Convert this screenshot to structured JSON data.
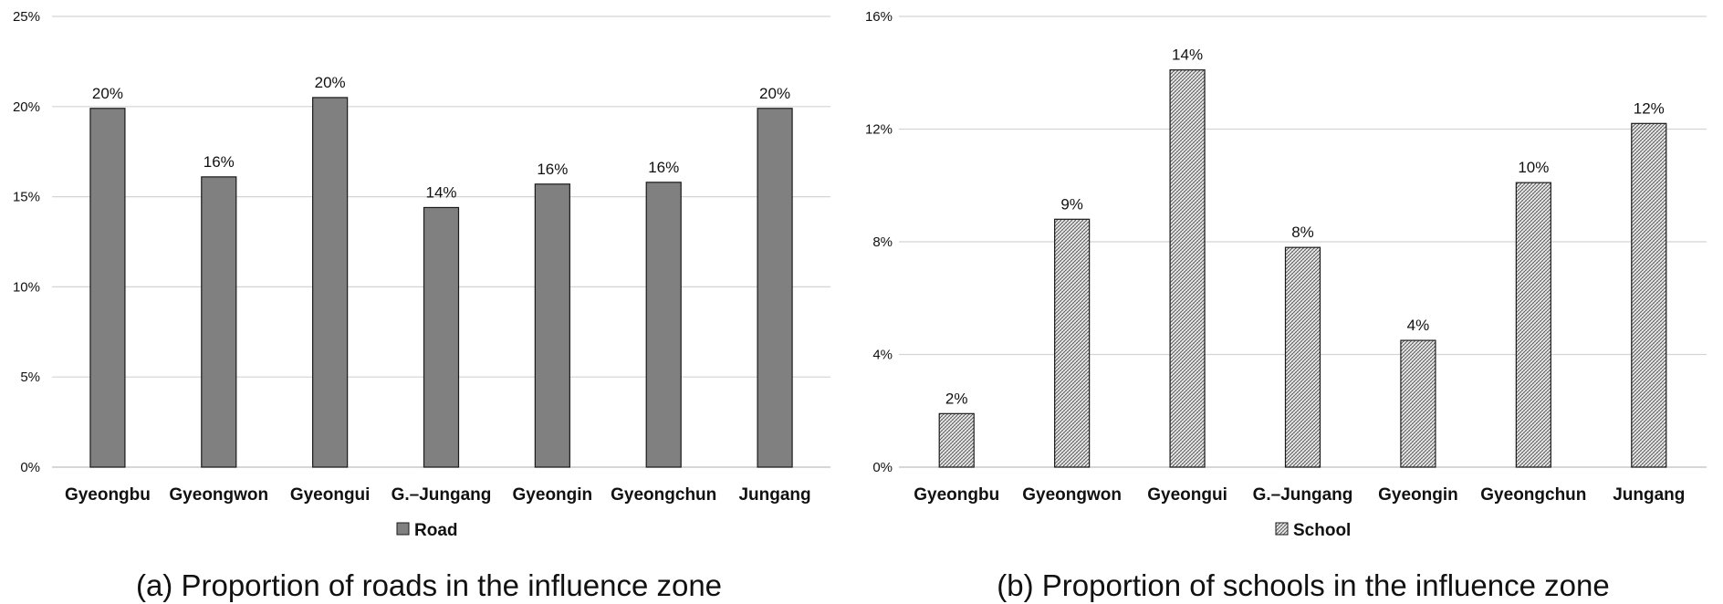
{
  "chart_data": [
    {
      "type": "bar",
      "categories": [
        "Gyeongbu",
        "Gyeongwon",
        "Gyeongui",
        "G.–Jungang",
        "Gyeongin",
        "Gyeongchun",
        "Jungang"
      ],
      "series": [
        {
          "name": "Road",
          "values": [
            19.9,
            16.1,
            20.5,
            14.4,
            15.7,
            15.8,
            19.9
          ],
          "data_labels": [
            "20%",
            "16%",
            "20%",
            "14%",
            "16%",
            "16%",
            "20%"
          ],
          "color": "#808080",
          "fill": "solid"
        }
      ],
      "y_ticks": [
        "0%",
        "5%",
        "10%",
        "15%",
        "20%",
        "25%"
      ],
      "ylim": [
        0,
        25
      ],
      "grid": true,
      "legend_position": "bottom",
      "caption": "(a) Proportion of roads in the influence zone"
    },
    {
      "type": "bar",
      "categories": [
        "Gyeongbu",
        "Gyeongwon",
        "Gyeongui",
        "G.–Jungang",
        "Gyeongin",
        "Gyeongchun",
        "Jungang"
      ],
      "series": [
        {
          "name": "School",
          "values": [
            1.9,
            8.8,
            14.1,
            7.8,
            4.5,
            10.1,
            12.2
          ],
          "data_labels": [
            "2%",
            "9%",
            "14%",
            "8%",
            "4%",
            "10%",
            "12%"
          ],
          "color": "#555555",
          "fill": "hatched"
        }
      ],
      "y_ticks": [
        "0%",
        "4%",
        "8%",
        "12%",
        "16%"
      ],
      "ylim": [
        0,
        16
      ],
      "grid": true,
      "legend_position": "bottom",
      "caption": "(b) Proportion of schools in the influence zone"
    }
  ]
}
